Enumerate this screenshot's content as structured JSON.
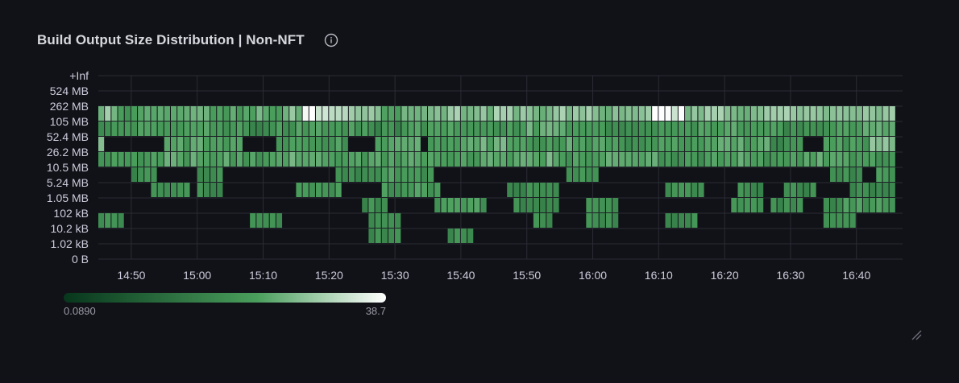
{
  "panel": {
    "title": "Build Output Size Distribution | Non-NFT"
  },
  "icons": {
    "info": "info-circle-icon",
    "resize": "resize-handle-icon"
  },
  "colors": {
    "background": "#111217",
    "grid": "#2a2c34",
    "scale_low": "#07361c",
    "scale_mid": "#4a9e5c",
    "scale_high": "#ffffff",
    "cell_border": "#111217"
  },
  "chart_data": {
    "type": "heatmap",
    "title": "Build Output Size Distribution | Non-NFT",
    "x_label": "",
    "y_label": "",
    "x_ticks": [
      "14:50",
      "15:00",
      "15:10",
      "15:20",
      "15:30",
      "15:40",
      "15:50",
      "16:00",
      "16:10",
      "16:20",
      "16:30",
      "16:40"
    ],
    "x_start": "14:45",
    "x_end": "16:47",
    "x_bucket_seconds": 60,
    "y_buckets": [
      "0 B",
      "1.02 kB",
      "10.2 kB",
      "102 kB",
      "1.05 MB",
      "5.24 MB",
      "10.5 MB",
      "26.2 MB",
      "52.4 MB",
      "105 MB",
      "262 MB",
      "524 MB",
      "+Inf"
    ],
    "color_scale": {
      "min": 0.089,
      "max": 38.7
    },
    "legend_min_label": "0.0890",
    "legend_max_label": "38.7",
    "rows": [
      {
        "bucket": "262 MB",
        "cells": [
          [
            0,
            2,
            9
          ],
          [
            3,
            6,
            3
          ],
          [
            7,
            12,
            6
          ],
          [
            13,
            16,
            5
          ],
          [
            17,
            19,
            3
          ],
          [
            20,
            23,
            4
          ],
          [
            24,
            28,
            5
          ],
          [
            29,
            30,
            8
          ],
          [
            31,
            34,
            30
          ],
          [
            35,
            37,
            12
          ],
          [
            38,
            42,
            8
          ],
          [
            43,
            49,
            5
          ],
          [
            50,
            55,
            9
          ],
          [
            56,
            59,
            7
          ],
          [
            60,
            64,
            10
          ],
          [
            65,
            68,
            6
          ],
          [
            69,
            74,
            9
          ],
          [
            75,
            78,
            7
          ],
          [
            79,
            83,
            8
          ],
          [
            84,
            88,
            30
          ],
          [
            89,
            94,
            10
          ],
          [
            95,
            99,
            6
          ],
          [
            100,
            104,
            9
          ],
          [
            105,
            111,
            7
          ],
          [
            112,
            120,
            8
          ]
        ]
      },
      {
        "bucket": "105 MB",
        "cells": [
          [
            0,
            0,
            2
          ],
          [
            1,
            6,
            3
          ],
          [
            7,
            13,
            3
          ],
          [
            14,
            16,
            4
          ],
          [
            17,
            22,
            3
          ],
          [
            23,
            26,
            2
          ],
          [
            27,
            29,
            3
          ],
          [
            30,
            34,
            4
          ],
          [
            35,
            40,
            3
          ],
          [
            41,
            46,
            2
          ],
          [
            47,
            52,
            3
          ],
          [
            53,
            58,
            4
          ],
          [
            59,
            63,
            3
          ],
          [
            64,
            70,
            5
          ],
          [
            71,
            76,
            3
          ],
          [
            77,
            82,
            2
          ],
          [
            83,
            90,
            3
          ],
          [
            91,
            98,
            4
          ],
          [
            99,
            103,
            3
          ],
          [
            104,
            110,
            2
          ],
          [
            111,
            120,
            4
          ]
        ]
      },
      {
        "bucket": "52.4 MB",
        "cells": [
          [
            0,
            0,
            6
          ],
          [
            10,
            16,
            4
          ],
          [
            17,
            21,
            3
          ],
          [
            27,
            37,
            3
          ],
          [
            42,
            48,
            4
          ],
          [
            50,
            55,
            3
          ],
          [
            56,
            62,
            5
          ],
          [
            63,
            70,
            3
          ],
          [
            71,
            78,
            4
          ],
          [
            79,
            84,
            2
          ],
          [
            85,
            93,
            3
          ],
          [
            94,
            101,
            4
          ],
          [
            102,
            106,
            2
          ],
          [
            110,
            116,
            3
          ],
          [
            117,
            120,
            8
          ]
        ]
      },
      {
        "bucket": "26.2 MB",
        "cells": [
          [
            0,
            1,
            2
          ],
          [
            2,
            8,
            3
          ],
          [
            9,
            20,
            4
          ],
          [
            21,
            26,
            3
          ],
          [
            27,
            34,
            5
          ],
          [
            35,
            41,
            3
          ],
          [
            42,
            48,
            4
          ],
          [
            49,
            55,
            3
          ],
          [
            56,
            63,
            4
          ],
          [
            64,
            69,
            5
          ],
          [
            70,
            76,
            3
          ],
          [
            77,
            84,
            4
          ],
          [
            85,
            91,
            3
          ],
          [
            92,
            98,
            4
          ],
          [
            99,
            106,
            3
          ],
          [
            107,
            113,
            4
          ],
          [
            114,
            120,
            3
          ]
        ]
      },
      {
        "bucket": "10.5 MB",
        "cells": [
          [
            5,
            8,
            2
          ],
          [
            15,
            18,
            2
          ],
          [
            36,
            41,
            2
          ],
          [
            42,
            48,
            3
          ],
          [
            49,
            50,
            2
          ],
          [
            71,
            75,
            3
          ],
          [
            111,
            115,
            2
          ],
          [
            118,
            120,
            3
          ]
        ]
      },
      {
        "bucket": "5.24 MB",
        "cells": [
          [
            8,
            13,
            2
          ],
          [
            15,
            18,
            2
          ],
          [
            30,
            36,
            3
          ],
          [
            43,
            51,
            3
          ],
          [
            62,
            69,
            2
          ],
          [
            86,
            91,
            2
          ],
          [
            97,
            100,
            2
          ],
          [
            104,
            108,
            2
          ],
          [
            114,
            120,
            2
          ]
        ]
      },
      {
        "bucket": "1.05 MB",
        "cells": [
          [
            40,
            43,
            2
          ],
          [
            51,
            58,
            3
          ],
          [
            63,
            69,
            2
          ],
          [
            74,
            78,
            2
          ],
          [
            96,
            100,
            2
          ],
          [
            102,
            106,
            2
          ],
          [
            110,
            112,
            2
          ],
          [
            113,
            120,
            3
          ]
        ]
      },
      {
        "bucket": "102 kB",
        "cells": [
          [
            0,
            3,
            2
          ],
          [
            23,
            27,
            2
          ],
          [
            41,
            45,
            2
          ],
          [
            66,
            68,
            2
          ],
          [
            74,
            78,
            2
          ],
          [
            86,
            90,
            2
          ],
          [
            110,
            114,
            2
          ]
        ]
      },
      {
        "bucket": "10.2 kB",
        "cells": [
          [
            41,
            45,
            2
          ],
          [
            53,
            56,
            2
          ]
        ]
      }
    ]
  }
}
